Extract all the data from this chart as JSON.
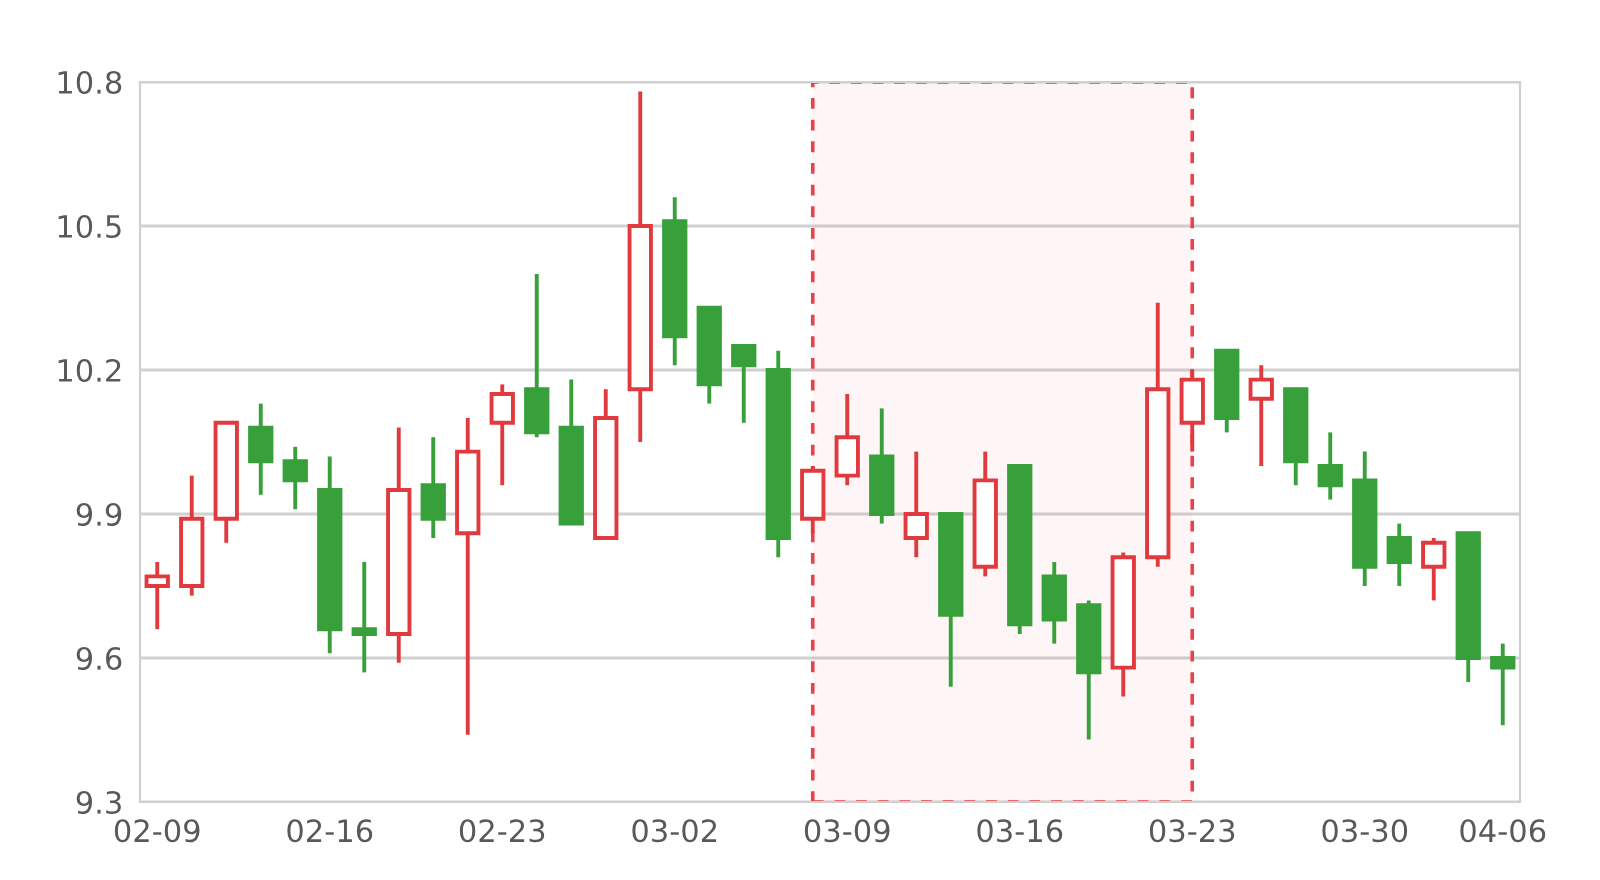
{
  "chart_data": {
    "type": "candlestick",
    "categories": [
      "02-09",
      null,
      null,
      null,
      null,
      "02-16",
      null,
      null,
      null,
      null,
      "02-23",
      null,
      null,
      null,
      null,
      "03-02",
      null,
      null,
      null,
      null,
      "03-09",
      null,
      null,
      null,
      null,
      "03-16",
      null,
      null,
      null,
      null,
      "03-23",
      null,
      null,
      null,
      null,
      "03-30",
      null,
      null,
      null,
      "04-06"
    ],
    "ohlc": [
      [
        9.75,
        9.8,
        9.66,
        9.77
      ],
      [
        9.75,
        9.98,
        9.73,
        9.89
      ],
      [
        9.89,
        10.09,
        9.84,
        10.09
      ],
      [
        10.08,
        10.13,
        9.94,
        10.01
      ],
      [
        10.01,
        10.04,
        9.91,
        9.97
      ],
      [
        9.95,
        10.02,
        9.61,
        9.66
      ],
      [
        9.66,
        9.8,
        9.57,
        9.65
      ],
      [
        9.65,
        10.08,
        9.59,
        9.95
      ],
      [
        9.96,
        10.06,
        9.85,
        9.89
      ],
      [
        9.86,
        10.1,
        9.44,
        10.03
      ],
      [
        10.09,
        10.17,
        9.96,
        10.15
      ],
      [
        10.16,
        10.4,
        10.06,
        10.07
      ],
      [
        10.08,
        10.18,
        9.88,
        9.88
      ],
      [
        9.85,
        10.16,
        9.85,
        10.1
      ],
      [
        10.16,
        10.78,
        10.05,
        10.5
      ],
      [
        10.51,
        10.56,
        10.21,
        10.27
      ],
      [
        10.33,
        10.33,
        10.13,
        10.17
      ],
      [
        10.25,
        10.25,
        10.09,
        10.21
      ],
      [
        10.2,
        10.24,
        9.81,
        9.85
      ],
      [
        9.89,
        10.0,
        9.86,
        9.99
      ],
      [
        9.98,
        10.15,
        9.96,
        10.06
      ],
      [
        10.02,
        10.12,
        9.88,
        9.9
      ],
      [
        9.85,
        10.03,
        9.81,
        9.9
      ],
      [
        9.9,
        9.9,
        9.54,
        9.69
      ],
      [
        9.79,
        10.03,
        9.77,
        9.97
      ],
      [
        10.0,
        10.0,
        9.65,
        9.67
      ],
      [
        9.77,
        9.8,
        9.63,
        9.68
      ],
      [
        9.71,
        9.72,
        9.43,
        9.57
      ],
      [
        9.58,
        9.82,
        9.52,
        9.81
      ],
      [
        9.81,
        10.34,
        9.79,
        10.16
      ],
      [
        10.09,
        10.2,
        10.03,
        10.18
      ],
      [
        10.24,
        10.24,
        10.07,
        10.1
      ],
      [
        10.14,
        10.21,
        10.0,
        10.18
      ],
      [
        10.16,
        10.16,
        9.96,
        10.01
      ],
      [
        10.0,
        10.07,
        9.93,
        9.96
      ],
      [
        9.97,
        10.03,
        9.75,
        9.79
      ],
      [
        9.85,
        9.88,
        9.75,
        9.8
      ],
      [
        9.79,
        9.85,
        9.72,
        9.84
      ],
      [
        9.86,
        9.86,
        9.55,
        9.6
      ],
      [
        9.6,
        9.63,
        9.46,
        9.58
      ]
    ],
    "colors": [
      "#e03a3e",
      "#e03a3e",
      "#e03a3e",
      "#37a03a",
      "#37a03a",
      "#37a03a",
      "#37a03a",
      "#e03a3e",
      "#37a03a",
      "#e03a3e",
      "#e03a3e",
      "#37a03a",
      "#37a03a",
      "#e03a3e",
      "#e03a3e",
      "#37a03a",
      "#37a03a",
      "#37a03a",
      "#37a03a",
      "#e03a3e",
      "#e03a3e",
      "#37a03a",
      "#e03a3e",
      "#37a03a",
      "#e03a3e",
      "#37a03a",
      "#37a03a",
      "#37a03a",
      "#e03a3e",
      "#e03a3e",
      "#e03a3e",
      "#37a03a",
      "#e03a3e",
      "#37a03a",
      "#37a03a",
      "#37a03a",
      "#37a03a",
      "#e03a3e",
      "#37a03a",
      "#37a03a"
    ],
    "ylim": [
      9.3,
      10.8
    ],
    "yticks": [
      9.3,
      9.6,
      9.9,
      10.2,
      10.5,
      10.8
    ],
    "grid": "y"
  }
}
